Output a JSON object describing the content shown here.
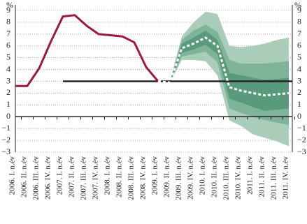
{
  "chart_data": {
    "type": "fan",
    "y_unit": "%",
    "categories": [
      "2006. I. n.év",
      "2006. II. n.év",
      "2006. III. n.év",
      "2006. IV. n.év",
      "2007. I. n.év",
      "2007. II. n.év",
      "2007. III. n.év",
      "2007. IV. n.év",
      "2008. I. n.év",
      "2008. II. n.év",
      "2008. III. n.év",
      "2008. IV. n.év",
      "2009. I. n.év",
      "2009. II. n.év",
      "2009. III. n.év",
      "2009. IV. n.év",
      "2010. I. n.év",
      "2010. II. n.év",
      "2010. III. n.év",
      "2010. IV. n.év",
      "2011. I. n.év",
      "2011. II. n.év",
      "2011. III. n.év",
      "2011. IV. n.év"
    ],
    "series": [
      {
        "color": "#9b1b3a",
        "style": "solid",
        "values": [
          2.6,
          2.6,
          4.1,
          6.4,
          8.5,
          8.6,
          7.7,
          7.0,
          6.9,
          6.8,
          6.3,
          4.2,
          3.0,
          null,
          null,
          null,
          null,
          null,
          null,
          null,
          null,
          null,
          null,
          null
        ]
      },
      {
        "color": "#ffffff",
        "style": "dashed",
        "values": [
          null,
          null,
          null,
          null,
          null,
          null,
          null,
          null,
          null,
          null,
          null,
          null,
          3.0,
          2.9,
          5.8,
          6.2,
          6.7,
          6.0,
          2.5,
          2.2,
          2.0,
          1.8,
          1.9,
          2.0
        ]
      }
    ],
    "bands": [
      {
        "color": "#a9cdb8",
        "upper": [
          null,
          null,
          null,
          null,
          null,
          null,
          null,
          null,
          null,
          null,
          null,
          null,
          3.0,
          3.0,
          6.8,
          8.0,
          8.9,
          8.7,
          6.0,
          5.9,
          6.0,
          6.2,
          6.5,
          6.7
        ],
        "lower": [
          null,
          null,
          null,
          null,
          null,
          null,
          null,
          null,
          null,
          null,
          null,
          null,
          3.0,
          2.9,
          4.8,
          4.8,
          4.7,
          3.5,
          -0.3,
          -0.8,
          -1.5,
          -1.8,
          -2.1,
          -2.5
        ]
      },
      {
        "color": "#7fb39a",
        "upper": [
          null,
          null,
          null,
          null,
          null,
          null,
          null,
          null,
          null,
          null,
          null,
          null,
          3.0,
          3.0,
          6.5,
          7.3,
          7.8,
          7.2,
          4.8,
          4.5,
          4.5,
          4.5,
          4.6,
          4.7
        ],
        "lower": [
          null,
          null,
          null,
          null,
          null,
          null,
          null,
          null,
          null,
          null,
          null,
          null,
          3.0,
          2.9,
          5.1,
          5.3,
          5.5,
          4.6,
          0.7,
          0.3,
          0.0,
          -0.3,
          -0.5,
          -0.7
        ]
      },
      {
        "color": "#5a9a7c",
        "upper": [
          null,
          null,
          null,
          null,
          null,
          null,
          null,
          null,
          null,
          null,
          null,
          null,
          3.0,
          2.9,
          6.2,
          6.7,
          7.3,
          6.5,
          3.7,
          3.5,
          3.3,
          3.1,
          3.2,
          3.3
        ],
        "lower": [
          null,
          null,
          null,
          null,
          null,
          null,
          null,
          null,
          null,
          null,
          null,
          null,
          3.0,
          2.9,
          5.4,
          5.7,
          6.1,
          5.3,
          1.5,
          1.2,
          0.8,
          0.5,
          0.6,
          0.7
        ]
      }
    ],
    "reference_line": {
      "value": 3,
      "color": "#222222",
      "from": "2007. I. n.év"
    },
    "ylim": [
      -3,
      9
    ],
    "yticks": [
      {
        "value": -3,
        "label": "−3"
      },
      {
        "value": -2,
        "label": "−2"
      },
      {
        "value": -1,
        "label": "−1"
      },
      0,
      1,
      2,
      3,
      4,
      5,
      6,
      7,
      8,
      9
    ],
    "grid": true
  }
}
